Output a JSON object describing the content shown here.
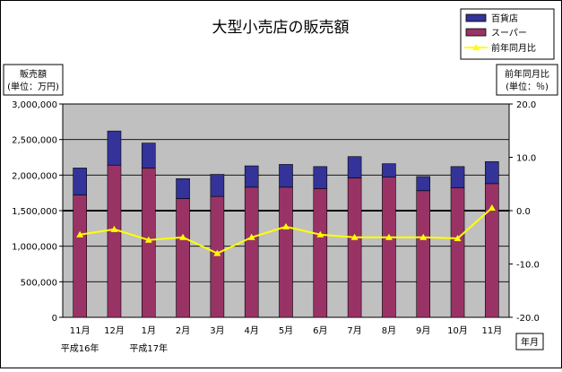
{
  "chart_data": {
    "type": "bar",
    "stacked": true,
    "title": "大型小売店の販売額",
    "left_axis_label": [
      "販売額",
      "(単位：万円)"
    ],
    "right_axis_label": [
      "前年同月比",
      "(単位：％)"
    ],
    "x_axis_label": "年月",
    "categories": [
      "11月",
      "12月",
      "1月",
      "2月",
      "3月",
      "4月",
      "5月",
      "6月",
      "7月",
      "8月",
      "9月",
      "10月",
      "11月"
    ],
    "era_labels": [
      {
        "text": "平成16年",
        "category_index": 0
      },
      {
        "text": "平成17年",
        "category_index": 2
      }
    ],
    "ylim_left": [
      0,
      3000000
    ],
    "yticks_left": [
      "0",
      "500,000",
      "1,000,000",
      "1,500,000",
      "2,000,000",
      "2,500,000",
      "3,000,000"
    ],
    "ylim_right": [
      -20,
      20
    ],
    "yticks_right": [
      "-20.0",
      "-10.0",
      "0.0",
      "10.0",
      "20.0"
    ],
    "grid": "horizontal",
    "legend_position": "top-right",
    "series": [
      {
        "name": "スーパー",
        "kind": "bar",
        "axis": "left",
        "color": "#993366",
        "values": [
          1720000,
          2140000,
          2100000,
          1670000,
          1700000,
          1830000,
          1830000,
          1810000,
          1960000,
          1970000,
          1780000,
          1820000,
          1880000
        ]
      },
      {
        "name": "百貨店",
        "kind": "bar",
        "axis": "left",
        "color": "#333399",
        "values": [
          380000,
          480000,
          350000,
          280000,
          310000,
          300000,
          320000,
          310000,
          300000,
          190000,
          200000,
          300000,
          310000
        ]
      },
      {
        "name": "前年同月比",
        "kind": "line",
        "axis": "right",
        "color": "#FFFF00",
        "values": [
          -4.5,
          -3.5,
          -5.5,
          -5.0,
          -8.0,
          -5.0,
          -3.0,
          -4.5,
          -5.0,
          -5.0,
          -5.0,
          -5.2,
          0.5
        ]
      }
    ],
    "legend_order": [
      "百貨店",
      "スーパー",
      "前年同月比"
    ],
    "colors": {
      "plot_background": "#C0C0C0",
      "zero_line": "#000000",
      "gridline": "#000000"
    }
  }
}
